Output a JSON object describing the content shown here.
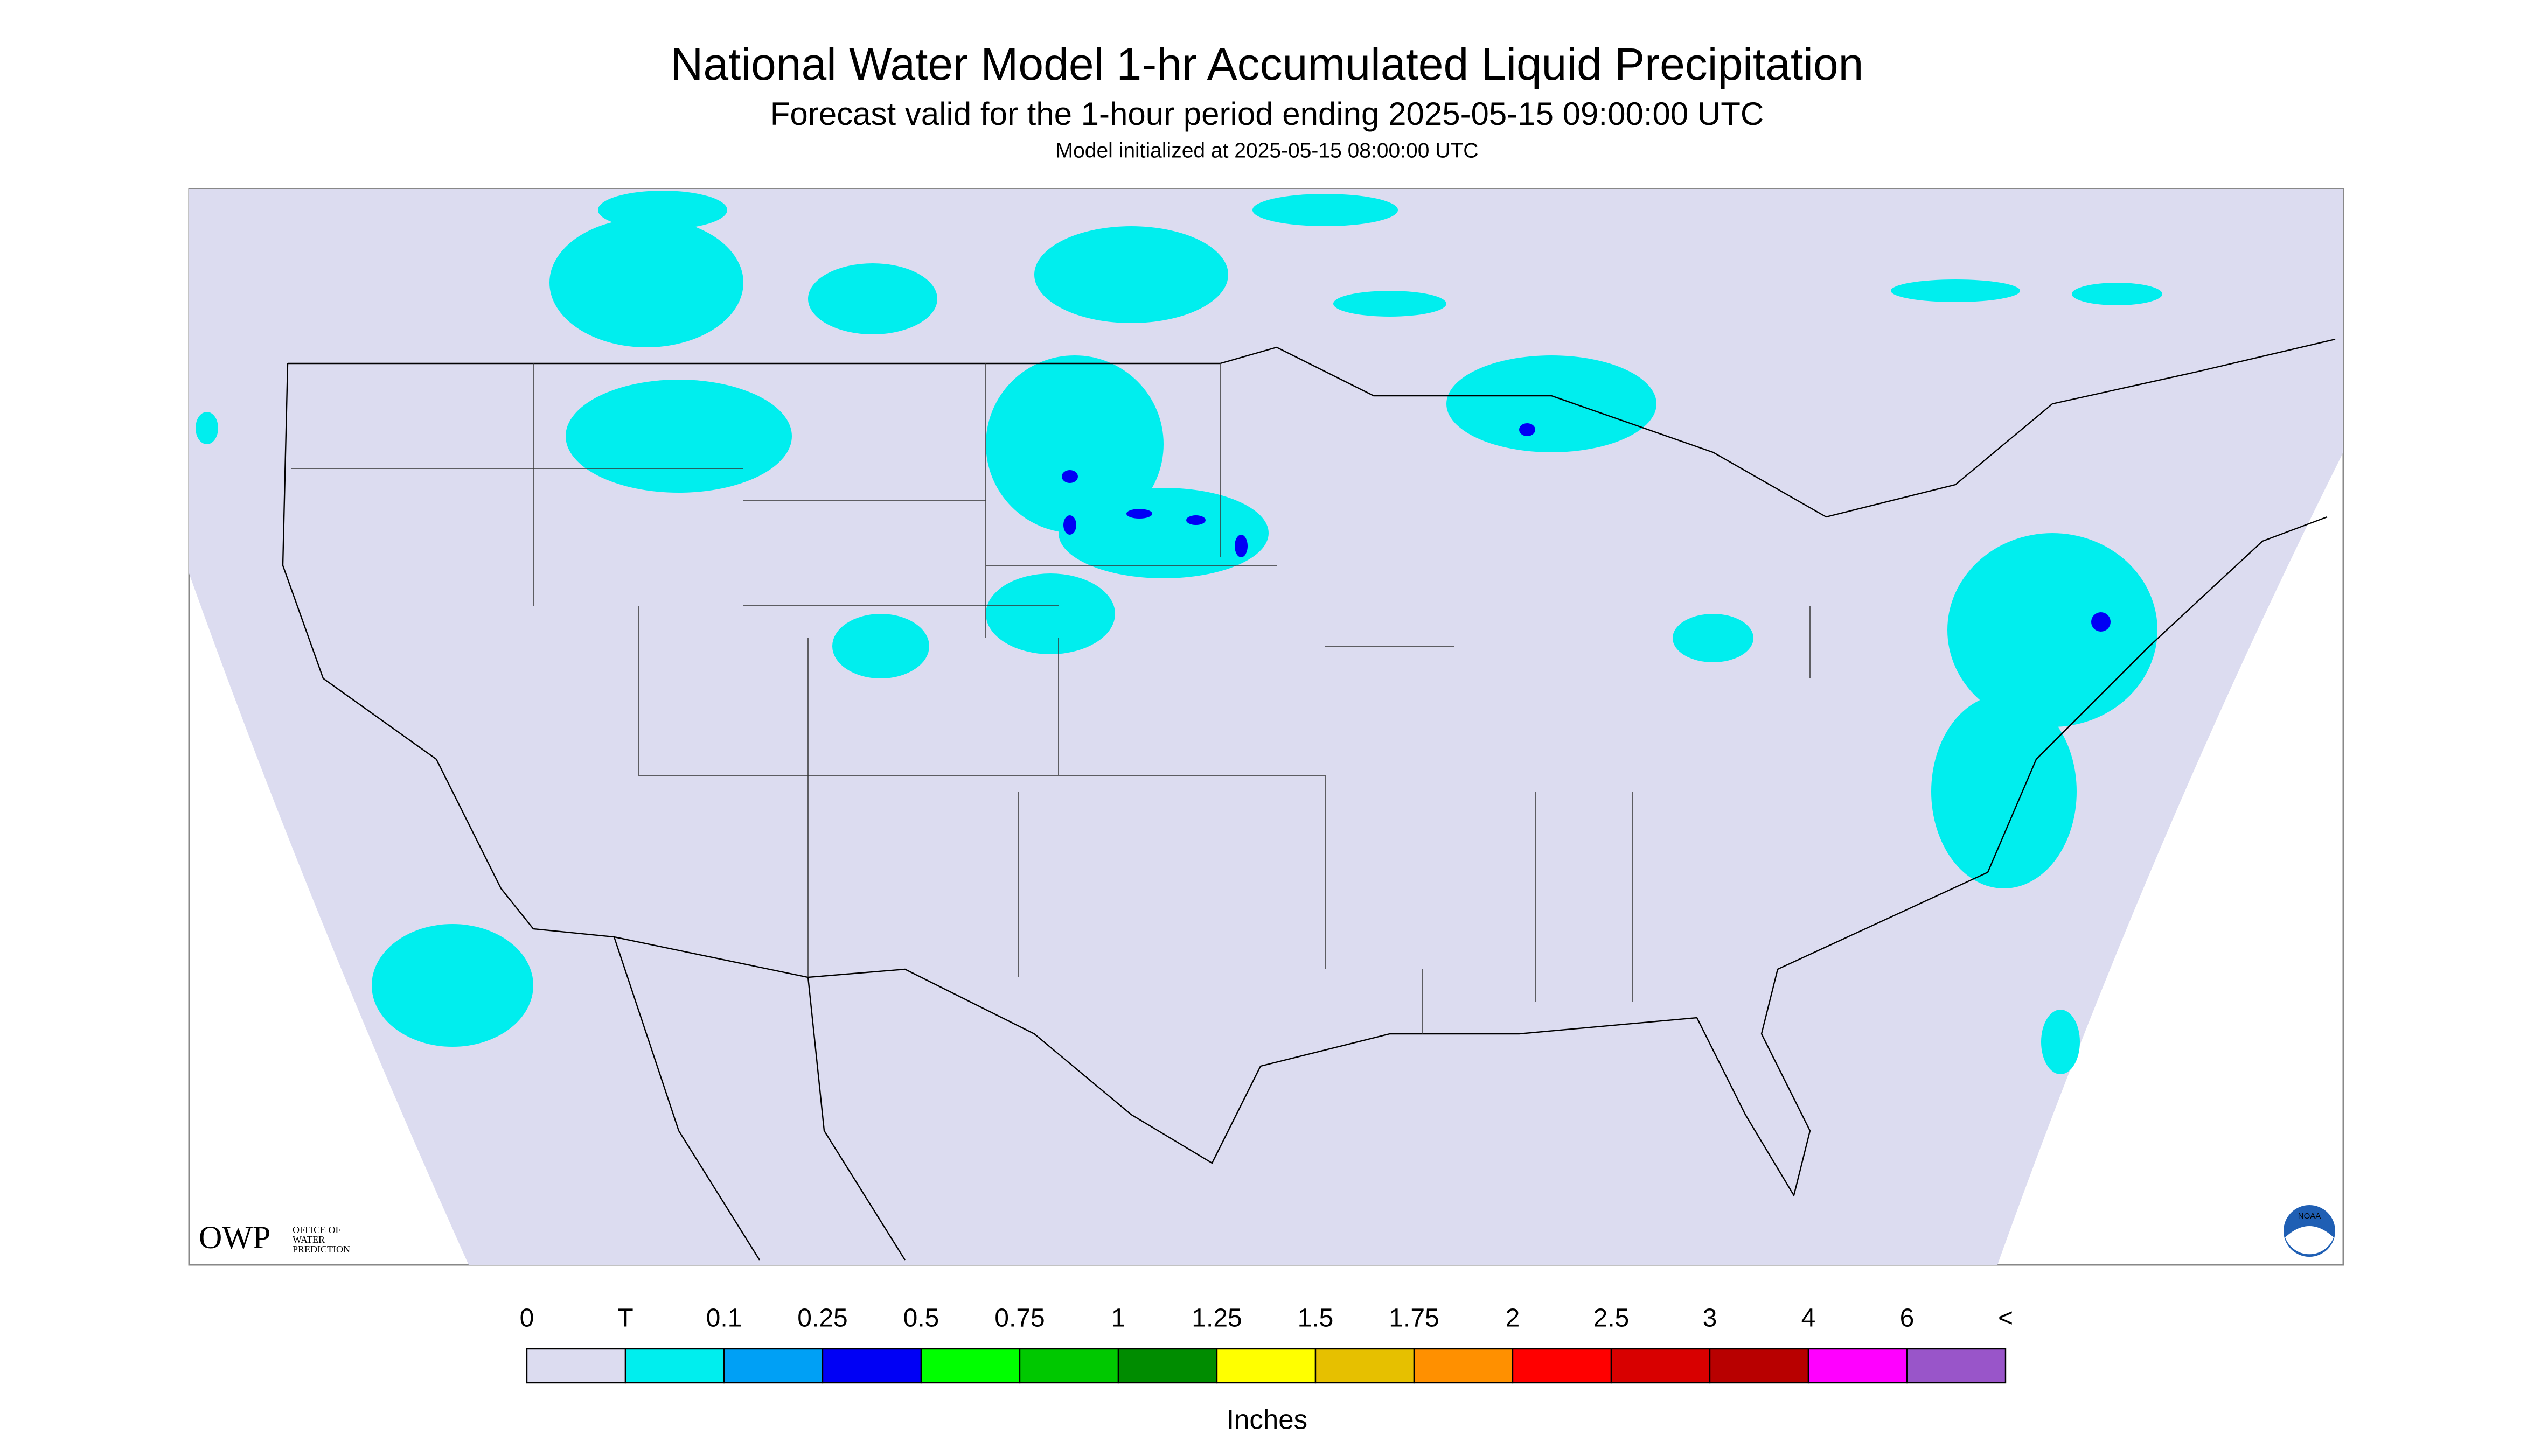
{
  "header": {
    "title": "National Water Model 1-hr Accumulated Liquid Precipitation",
    "subtitle": "Forecast valid for the 1-hour period ending 2025-05-15 09:00:00 UTC",
    "note": "Model initialized at 2025-05-15 08:00:00 UTC"
  },
  "logo": {
    "name": "OWP",
    "line1": "OFFICE OF",
    "line2": "WATER",
    "line3": "PREDICTION",
    "badge": "NOAA"
  },
  "legend": {
    "labels": [
      "0",
      "T",
      "0.1",
      "0.25",
      "0.5",
      "0.75",
      "1",
      "1.25",
      "1.5",
      "1.75",
      "2",
      "2.5",
      "3",
      "4",
      "6",
      "<"
    ],
    "colors": [
      "#dcdcf0",
      "#00eeee",
      "#00a0f5",
      "#0000f5",
      "#00ff00",
      "#00c800",
      "#008c00",
      "#ffff00",
      "#e6c000",
      "#ff9000",
      "#ff0000",
      "#d80000",
      "#b80000",
      "#ff00ff",
      "#9955c9"
    ],
    "unit": "Inches"
  }
}
